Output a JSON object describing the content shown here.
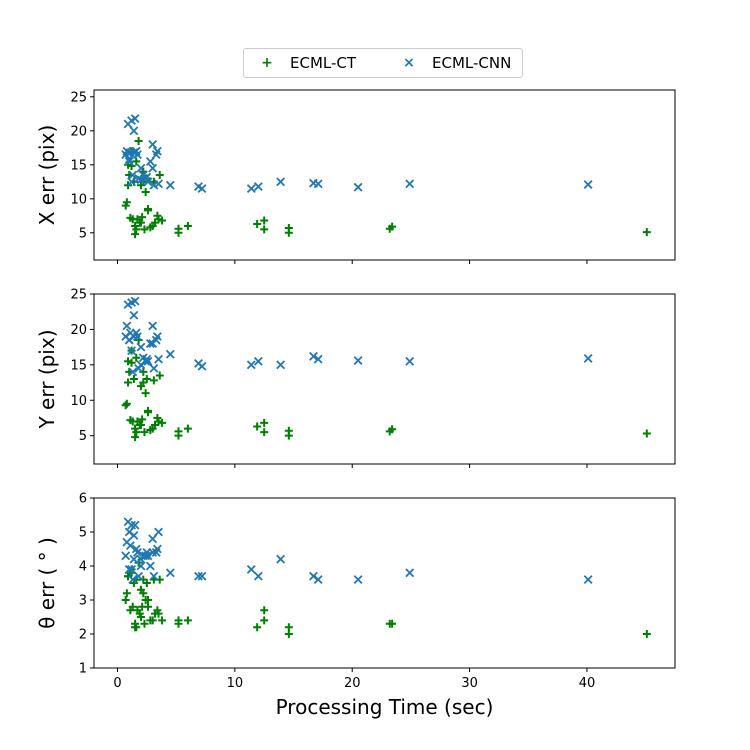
{
  "chart_data": [
    {
      "type": "scatter",
      "ylabel": "X err (pix)",
      "ylim": [
        1,
        26
      ],
      "yticks": [
        5,
        10,
        15,
        20,
        25
      ],
      "xlim": [
        -2,
        47.5
      ],
      "series": [
        {
          "name": "ECML-CT",
          "marker": "plus",
          "color": "#008000",
          "x": [
            0.7,
            0.8,
            0.9,
            1.0,
            1.1,
            1.2,
            1.3,
            1.4,
            1.5,
            1.6,
            1.7,
            1.8,
            1.9,
            2.0,
            2.1,
            2.2,
            2.3,
            2.4,
            2.6,
            2.8,
            3.0,
            3.1,
            3.2,
            3.4,
            3.6,
            3.8,
            0.9,
            1.5,
            2.0,
            2.2,
            2.5,
            5.2,
            6.0,
            11.9,
            12.5,
            14.6,
            23.2,
            45.1,
            1.2,
            3.5,
            5.2,
            12.5,
            14.6,
            23.4,
            1.6,
            2.6
          ],
          "y": [
            9.0,
            9.5,
            12.0,
            13.5,
            7.2,
            14.8,
            7.0,
            12.5,
            4.8,
            15.5,
            7.0,
            18.5,
            6.5,
            12.0,
            7.3,
            14.0,
            5.5,
            11.0,
            8.5,
            5.8,
            6.0,
            12.5,
            6.5,
            7.5,
            13.5,
            6.8,
            15.0,
            6.0,
            6.5,
            12.5,
            13.0,
            5.6,
            6.0,
            6.3,
            6.8,
            5.0,
            5.6,
            5.1,
            17.0,
            7.0,
            5.0,
            5.5,
            5.7,
            5.9,
            5.5,
            8.3
          ]
        },
        {
          "name": "ECML-CNN",
          "marker": "x",
          "color": "#1f77b4",
          "x": [
            0.7,
            0.8,
            0.9,
            1.0,
            1.1,
            1.2,
            1.3,
            1.4,
            1.5,
            1.6,
            1.7,
            1.8,
            2.0,
            2.2,
            2.4,
            2.6,
            2.8,
            3.0,
            3.1,
            3.3,
            3.5,
            4.5,
            6.9,
            7.2,
            11.4,
            12.0,
            13.9,
            16.7,
            17.1,
            20.5,
            24.9,
            40.1,
            1.4,
            3.0,
            1.0,
            2.5,
            3.4,
            1.2,
            2.0
          ],
          "y": [
            16.5,
            17.0,
            21.0,
            15.5,
            16.8,
            21.5,
            13.5,
            20.0,
            21.8,
            17.0,
            16.5,
            13.0,
            12.8,
            13.5,
            13.0,
            12.5,
            15.5,
            18.0,
            12.0,
            16.5,
            12.2,
            12.0,
            11.8,
            11.5,
            11.5,
            11.8,
            12.5,
            12.3,
            12.2,
            11.7,
            12.2,
            12.1,
            16.8,
            14.5,
            15.8,
            13.2,
            17.0,
            12.5,
            14.5
          ]
        }
      ]
    },
    {
      "type": "scatter",
      "ylabel": "Y err (pix)",
      "ylim": [
        1,
        25
      ],
      "yticks": [
        5,
        10,
        15,
        20,
        25
      ],
      "xlim": [
        -2,
        47.5
      ],
      "series": [
        {
          "name": "ECML-CT",
          "marker": "plus",
          "color": "#008000",
          "x": [
            0.7,
            0.8,
            0.9,
            1.0,
            1.1,
            1.2,
            1.3,
            1.4,
            1.5,
            1.6,
            1.7,
            1.8,
            1.9,
            2.0,
            2.1,
            2.2,
            2.3,
            2.4,
            2.6,
            2.8,
            3.0,
            3.1,
            3.2,
            3.4,
            3.6,
            3.8,
            0.9,
            1.5,
            2.0,
            2.2,
            2.5,
            5.2,
            6.0,
            11.9,
            12.5,
            14.6,
            23.2,
            45.1,
            1.2,
            3.5,
            5.2,
            12.5,
            14.6,
            23.4,
            1.6,
            2.6
          ],
          "y": [
            9.3,
            9.5,
            12.5,
            14.0,
            7.2,
            15.3,
            7.0,
            13.0,
            4.8,
            16.0,
            7.0,
            18.5,
            6.5,
            12.0,
            7.3,
            14.0,
            5.5,
            11.0,
            8.5,
            5.8,
            6.0,
            12.8,
            6.5,
            7.5,
            13.5,
            6.8,
            15.5,
            6.0,
            6.5,
            12.5,
            13.0,
            5.6,
            6.0,
            6.3,
            6.8,
            5.0,
            5.6,
            5.3,
            17.0,
            7.0,
            5.0,
            5.5,
            5.7,
            5.9,
            5.5,
            8.3
          ]
        },
        {
          "name": "ECML-CNN",
          "marker": "x",
          "color": "#1f77b4",
          "x": [
            0.7,
            0.8,
            0.9,
            1.0,
            1.1,
            1.2,
            1.3,
            1.4,
            1.5,
            1.6,
            1.7,
            1.8,
            2.0,
            2.2,
            2.4,
            2.6,
            2.8,
            3.0,
            3.1,
            3.3,
            3.5,
            4.5,
            6.9,
            7.2,
            11.4,
            12.0,
            13.9,
            16.7,
            17.1,
            20.5,
            24.9,
            40.1,
            1.4,
            3.0,
            1.0,
            2.5,
            3.4,
            1.2,
            2.0
          ],
          "y": [
            19.0,
            20.5,
            23.5,
            18.5,
            19.5,
            23.8,
            14.0,
            22.0,
            24.0,
            19.5,
            19.0,
            14.5,
            15.0,
            16.0,
            15.5,
            15.5,
            18.0,
            20.5,
            14.5,
            18.5,
            15.8,
            16.5,
            15.2,
            14.8,
            15.0,
            15.5,
            15.0,
            16.2,
            15.8,
            15.6,
            15.5,
            15.9,
            19.0,
            18.0,
            18.5,
            15.8,
            19.0,
            17.0,
            17.5
          ]
        }
      ]
    },
    {
      "type": "scatter",
      "xlabel": "Processing Time (sec)",
      "ylabel": "θ err ( ° )",
      "ylim": [
        1,
        6
      ],
      "yticks": [
        1,
        2,
        3,
        4,
        5,
        6
      ],
      "xlim": [
        -2,
        47.5
      ],
      "xticks": [
        0,
        10,
        20,
        30,
        40
      ],
      "series": [
        {
          "name": "ECML-CT",
          "marker": "plus",
          "color": "#008000",
          "x": [
            0.7,
            0.8,
            0.9,
            1.0,
            1.1,
            1.2,
            1.3,
            1.4,
            1.5,
            1.6,
            1.7,
            1.8,
            1.9,
            2.0,
            2.1,
            2.2,
            2.3,
            2.4,
            2.6,
            2.8,
            3.0,
            3.1,
            3.2,
            3.4,
            3.6,
            3.8,
            0.9,
            1.5,
            2.0,
            2.2,
            2.5,
            5.2,
            6.0,
            11.9,
            12.5,
            14.6,
            23.2,
            45.1,
            1.2,
            3.5,
            5.2,
            12.5,
            14.6,
            23.4,
            1.6,
            2.6
          ],
          "y": [
            3.0,
            3.2,
            3.7,
            3.8,
            2.7,
            3.9,
            2.8,
            3.5,
            2.2,
            3.6,
            2.7,
            4.1,
            2.6,
            3.3,
            2.8,
            3.6,
            2.3,
            3.0,
            3.0,
            2.4,
            2.4,
            3.6,
            2.6,
            2.7,
            3.6,
            2.4,
            3.7,
            2.3,
            2.5,
            3.2,
            3.5,
            2.4,
            2.4,
            2.2,
            2.4,
            2.0,
            2.3,
            2.0,
            3.8,
            2.6,
            2.3,
            2.7,
            2.2,
            2.3,
            2.2,
            2.8
          ]
        },
        {
          "name": "ECML-CNN",
          "marker": "x",
          "color": "#1f77b4",
          "x": [
            0.7,
            0.8,
            0.9,
            1.0,
            1.1,
            1.2,
            1.3,
            1.4,
            1.5,
            1.6,
            1.7,
            1.8,
            2.0,
            2.2,
            2.4,
            2.6,
            2.8,
            3.0,
            3.1,
            3.3,
            3.5,
            4.5,
            6.9,
            7.2,
            11.4,
            12.0,
            13.9,
            16.7,
            17.1,
            20.5,
            24.9,
            40.1,
            1.4,
            3.0,
            1.0,
            2.5,
            3.4,
            1.2,
            2.0
          ],
          "y": [
            4.3,
            4.7,
            5.3,
            3.9,
            4.6,
            5.2,
            3.6,
            4.9,
            5.2,
            4.5,
            4.4,
            3.7,
            4.2,
            4.3,
            4.3,
            4.3,
            4.0,
            4.8,
            3.7,
            4.4,
            5.0,
            3.8,
            3.7,
            3.7,
            3.9,
            3.7,
            4.2,
            3.7,
            3.6,
            3.6,
            3.8,
            3.6,
            4.2,
            4.4,
            5.0,
            4.4,
            4.5,
            3.9,
            4.0
          ]
        }
      ]
    }
  ],
  "legend": {
    "placement": "top-center",
    "entries": [
      {
        "label": "ECML-CT",
        "symbol": "+",
        "color": "#008000"
      },
      {
        "label": "ECML-CNN",
        "symbol": "×",
        "color": "#1f77b4"
      }
    ]
  }
}
